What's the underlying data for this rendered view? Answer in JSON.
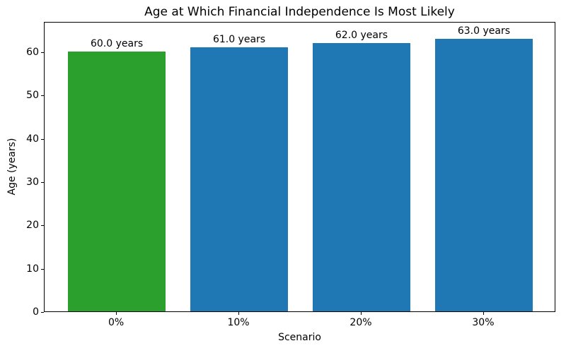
{
  "chart_data": {
    "type": "bar",
    "title": "Age at Which Financial Independence Is Most Likely",
    "xlabel": "Scenario",
    "ylabel": "Age (years)",
    "categories": [
      "0%",
      "10%",
      "20%",
      "30%"
    ],
    "values": [
      60.0,
      61.0,
      62.0,
      63.0
    ],
    "bar_labels": [
      "60.0 years",
      "61.0 years",
      "62.0 years",
      "63.0 years"
    ],
    "bar_colors": [
      "#2ca02c",
      "#1f77b4",
      "#1f77b4",
      "#1f77b4"
    ],
    "default_bar_color": "#1f77b4",
    "highlight_color": "#2ca02c",
    "yticks": [
      0,
      10,
      20,
      30,
      40,
      50,
      60
    ],
    "ylim": [
      0,
      67
    ],
    "xlim": [
      -0.59,
      3.59
    ],
    "bar_width": 0.8,
    "grid": false,
    "legend_position": "none",
    "background_color": "#ffffff",
    "text_color": "#000000"
  }
}
